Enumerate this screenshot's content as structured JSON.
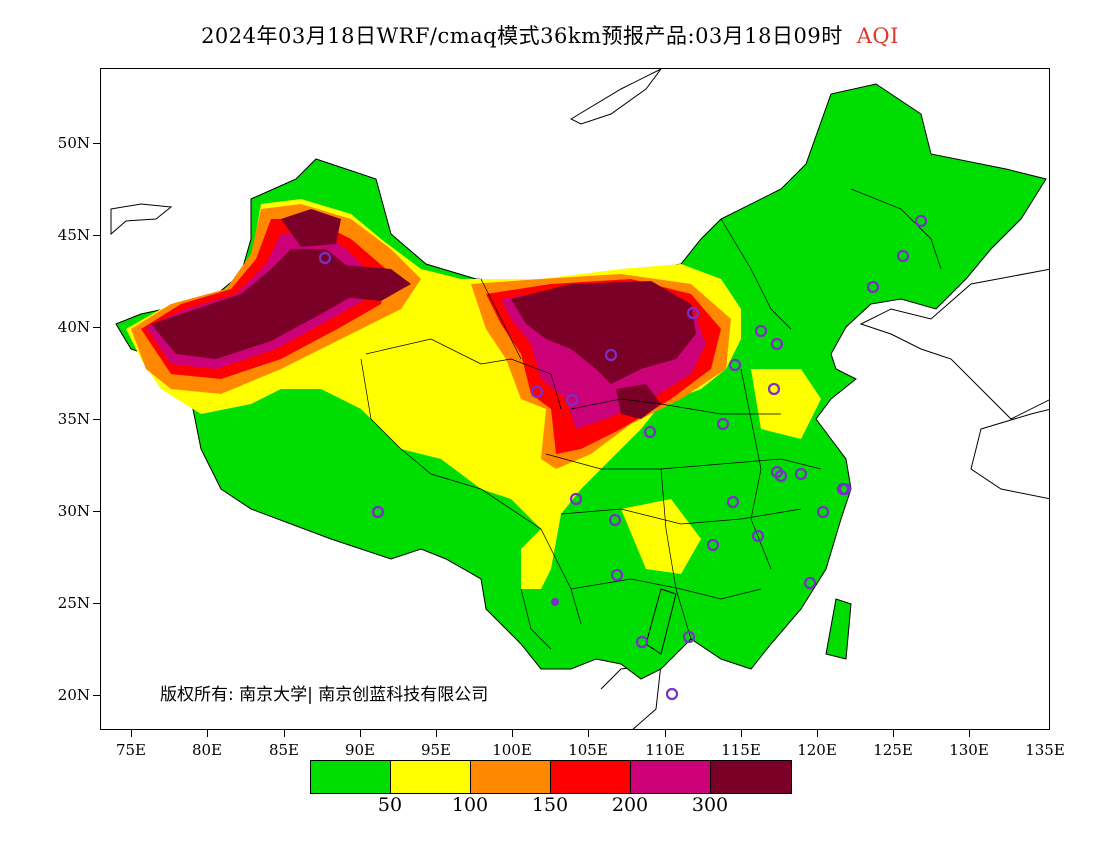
{
  "title": {
    "text": "2024年03月18日WRF/cmaq模式36km预报产品:03月18日09时",
    "tag": "AQI",
    "tag_color": "#e0392b"
  },
  "lat_labels": [
    "50N",
    "45N",
    "40N",
    "35N",
    "30N",
    "25N",
    "20N"
  ],
  "lon_labels": [
    "75E",
    "80E",
    "85E",
    "90E",
    "95E",
    "100E",
    "105E",
    "110E",
    "115E",
    "120E",
    "125E",
    "130E",
    "135E"
  ],
  "copyright": "版权所有: 南京大学| 南京创蓝科技有限公司",
  "legend": {
    "colors": [
      "#00dd00",
      "#ffff00",
      "#ff8800",
      "#ff0000",
      "#cc0077",
      "#7a0028"
    ],
    "labels": [
      "50",
      "100",
      "150",
      "200",
      "300"
    ]
  }
}
